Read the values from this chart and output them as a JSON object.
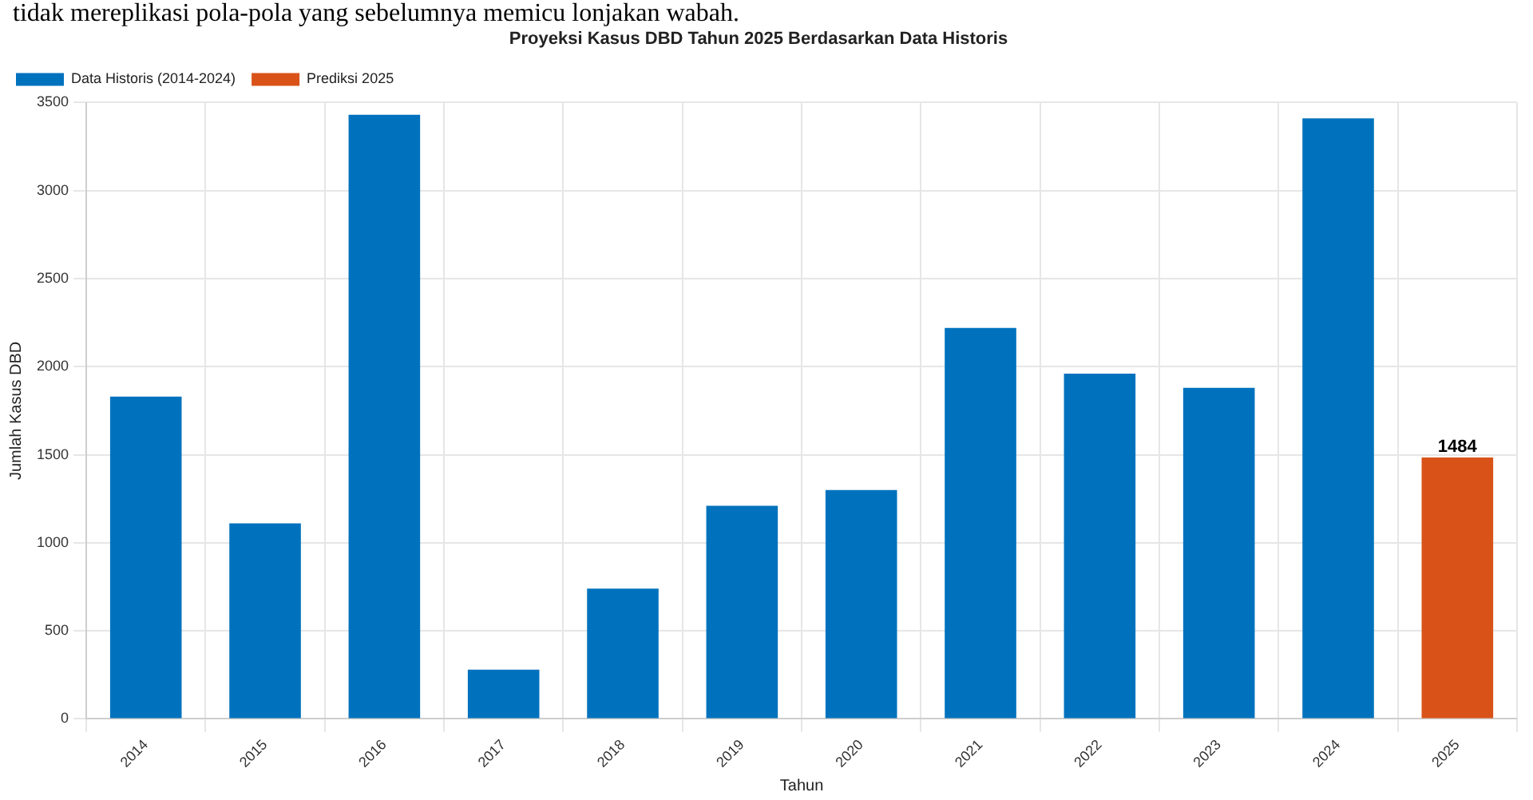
{
  "chart_data": {
    "type": "bar",
    "title": "Proyeksi Kasus DBD Tahun 2025 Berdasarkan Data Historis",
    "xlabel": "Tahun",
    "ylabel": "Jumlah Kasus DBD",
    "annotations": [
      "tidak mereplikasi pola-pola yang sebelumnya memicu lonjakan wabah."
    ],
    "categories": [
      "2014",
      "2015",
      "2016",
      "2017",
      "2018",
      "2019",
      "2020",
      "2021",
      "2022",
      "2023",
      "2024",
      "2025"
    ],
    "series": [
      {
        "name": "Data Historis (2014-2024)",
        "color": "#0072bd",
        "values": [
          1830,
          1110,
          3430,
          280,
          740,
          1210,
          1300,
          2220,
          1960,
          1880,
          3410,
          null
        ]
      },
      {
        "name": "Prediksi 2025",
        "color": "#d95319",
        "values": [
          null,
          null,
          null,
          null,
          null,
          null,
          null,
          null,
          null,
          null,
          null,
          1484
        ],
        "value_labels": [
          null,
          null,
          null,
          null,
          null,
          null,
          null,
          null,
          null,
          null,
          null,
          "1484"
        ]
      }
    ],
    "ylim": [
      0,
      3500
    ],
    "yticks": [
      0,
      500,
      1000,
      1500,
      2000,
      2500,
      3000,
      3500
    ],
    "grid": true,
    "legend": "top left"
  }
}
